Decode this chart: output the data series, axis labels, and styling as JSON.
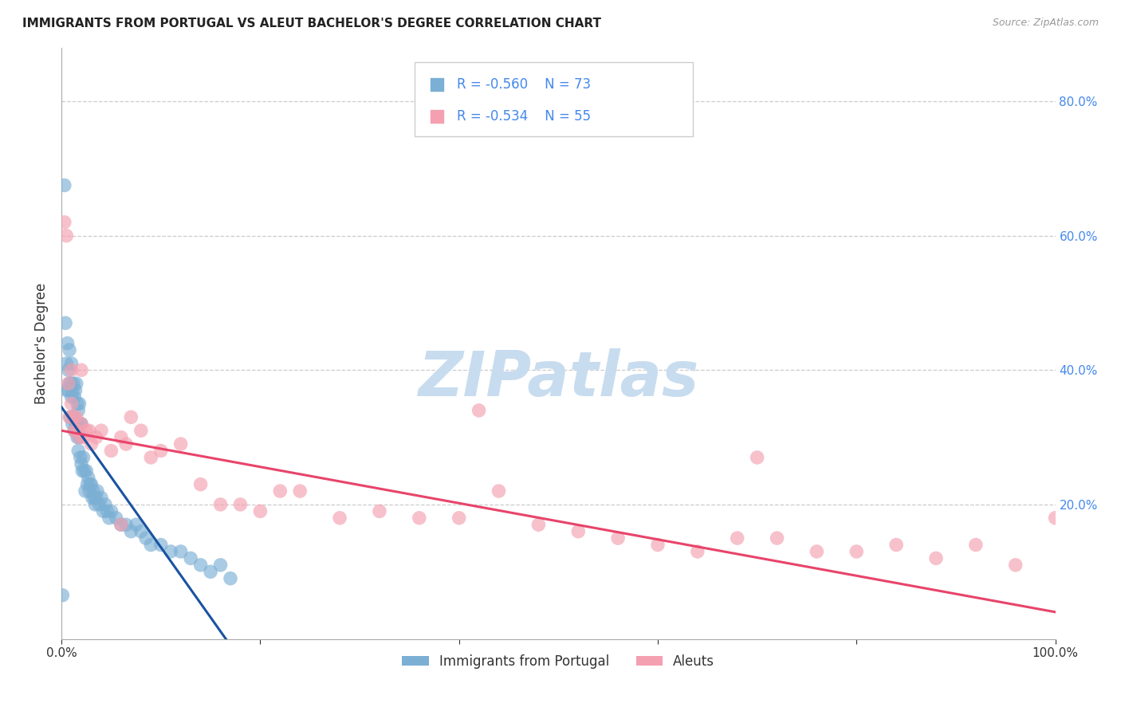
{
  "title": "IMMIGRANTS FROM PORTUGAL VS ALEUT BACHELOR'S DEGREE CORRELATION CHART",
  "source": "Source: ZipAtlas.com",
  "ylabel": "Bachelor's Degree",
  "right_yticks": [
    "20.0%",
    "40.0%",
    "60.0%",
    "80.0%"
  ],
  "right_ytick_vals": [
    0.2,
    0.4,
    0.6,
    0.8
  ],
  "grid_ytick_vals": [
    0.2,
    0.4,
    0.6,
    0.8
  ],
  "legend_label1": "Immigrants from Portugal",
  "legend_label2": "Aleuts",
  "legend_r1": "R = -0.560",
  "legend_n1": "N = 73",
  "legend_r2": "R = -0.534",
  "legend_n2": "N = 55",
  "color_blue": "#7BAFD4",
  "color_pink": "#F4A0B0",
  "color_blue_line": "#1A52A0",
  "color_pink_line": "#E8446A",
  "right_axis_color": "#4488EE",
  "watermark_text": "ZIPatlas",
  "watermark_color": "#C8DCEF",
  "blue_x": [
    0.001,
    0.003,
    0.004,
    0.005,
    0.005,
    0.006,
    0.007,
    0.007,
    0.008,
    0.008,
    0.009,
    0.009,
    0.01,
    0.01,
    0.011,
    0.011,
    0.012,
    0.012,
    0.013,
    0.013,
    0.014,
    0.014,
    0.015,
    0.015,
    0.016,
    0.016,
    0.017,
    0.017,
    0.018,
    0.018,
    0.019,
    0.019,
    0.02,
    0.02,
    0.021,
    0.022,
    0.023,
    0.024,
    0.025,
    0.026,
    0.027,
    0.028,
    0.029,
    0.03,
    0.031,
    0.032,
    0.033,
    0.034,
    0.035,
    0.036,
    0.038,
    0.04,
    0.042,
    0.044,
    0.046,
    0.048,
    0.05,
    0.055,
    0.06,
    0.065,
    0.07,
    0.075,
    0.08,
    0.085,
    0.09,
    0.1,
    0.11,
    0.12,
    0.13,
    0.14,
    0.15,
    0.16,
    0.17
  ],
  "blue_y": [
    0.065,
    0.675,
    0.47,
    0.41,
    0.37,
    0.44,
    0.4,
    0.37,
    0.43,
    0.38,
    0.38,
    0.33,
    0.41,
    0.36,
    0.37,
    0.32,
    0.38,
    0.33,
    0.36,
    0.31,
    0.37,
    0.32,
    0.38,
    0.32,
    0.35,
    0.3,
    0.34,
    0.28,
    0.35,
    0.3,
    0.32,
    0.27,
    0.32,
    0.26,
    0.25,
    0.27,
    0.25,
    0.22,
    0.25,
    0.23,
    0.24,
    0.22,
    0.23,
    0.23,
    0.21,
    0.22,
    0.21,
    0.2,
    0.21,
    0.22,
    0.2,
    0.21,
    0.19,
    0.2,
    0.19,
    0.18,
    0.19,
    0.18,
    0.17,
    0.17,
    0.16,
    0.17,
    0.16,
    0.15,
    0.14,
    0.14,
    0.13,
    0.13,
    0.12,
    0.11,
    0.1,
    0.11,
    0.09
  ],
  "pink_x": [
    0.003,
    0.005,
    0.007,
    0.008,
    0.01,
    0.012,
    0.013,
    0.015,
    0.016,
    0.018,
    0.02,
    0.022,
    0.025,
    0.028,
    0.03,
    0.035,
    0.04,
    0.05,
    0.06,
    0.065,
    0.07,
    0.08,
    0.09,
    0.1,
    0.12,
    0.14,
    0.16,
    0.18,
    0.2,
    0.22,
    0.24,
    0.28,
    0.32,
    0.36,
    0.4,
    0.44,
    0.48,
    0.52,
    0.56,
    0.6,
    0.64,
    0.68,
    0.72,
    0.76,
    0.8,
    0.84,
    0.88,
    0.92,
    0.96,
    1.0,
    0.01,
    0.02,
    0.06,
    0.42,
    0.7
  ],
  "pink_y": [
    0.62,
    0.6,
    0.38,
    0.33,
    0.35,
    0.33,
    0.31,
    0.33,
    0.31,
    0.3,
    0.32,
    0.3,
    0.31,
    0.31,
    0.29,
    0.3,
    0.31,
    0.28,
    0.3,
    0.29,
    0.33,
    0.31,
    0.27,
    0.28,
    0.29,
    0.23,
    0.2,
    0.2,
    0.19,
    0.22,
    0.22,
    0.18,
    0.19,
    0.18,
    0.18,
    0.22,
    0.17,
    0.16,
    0.15,
    0.14,
    0.13,
    0.15,
    0.15,
    0.13,
    0.13,
    0.14,
    0.12,
    0.14,
    0.11,
    0.18,
    0.4,
    0.4,
    0.17,
    0.34,
    0.27
  ],
  "blue_line_x": [
    0.0,
    0.175
  ],
  "blue_line_y": [
    0.345,
    -0.02
  ],
  "pink_line_x": [
    0.0,
    1.0
  ],
  "pink_line_y": [
    0.31,
    0.04
  ],
  "xlim": [
    0.0,
    1.0
  ],
  "ylim": [
    0.0,
    0.88
  ],
  "background_color": "#FFFFFF",
  "grid_color": "#CCCCCC",
  "title_fontsize": 11,
  "axis_label_color": "#333333"
}
